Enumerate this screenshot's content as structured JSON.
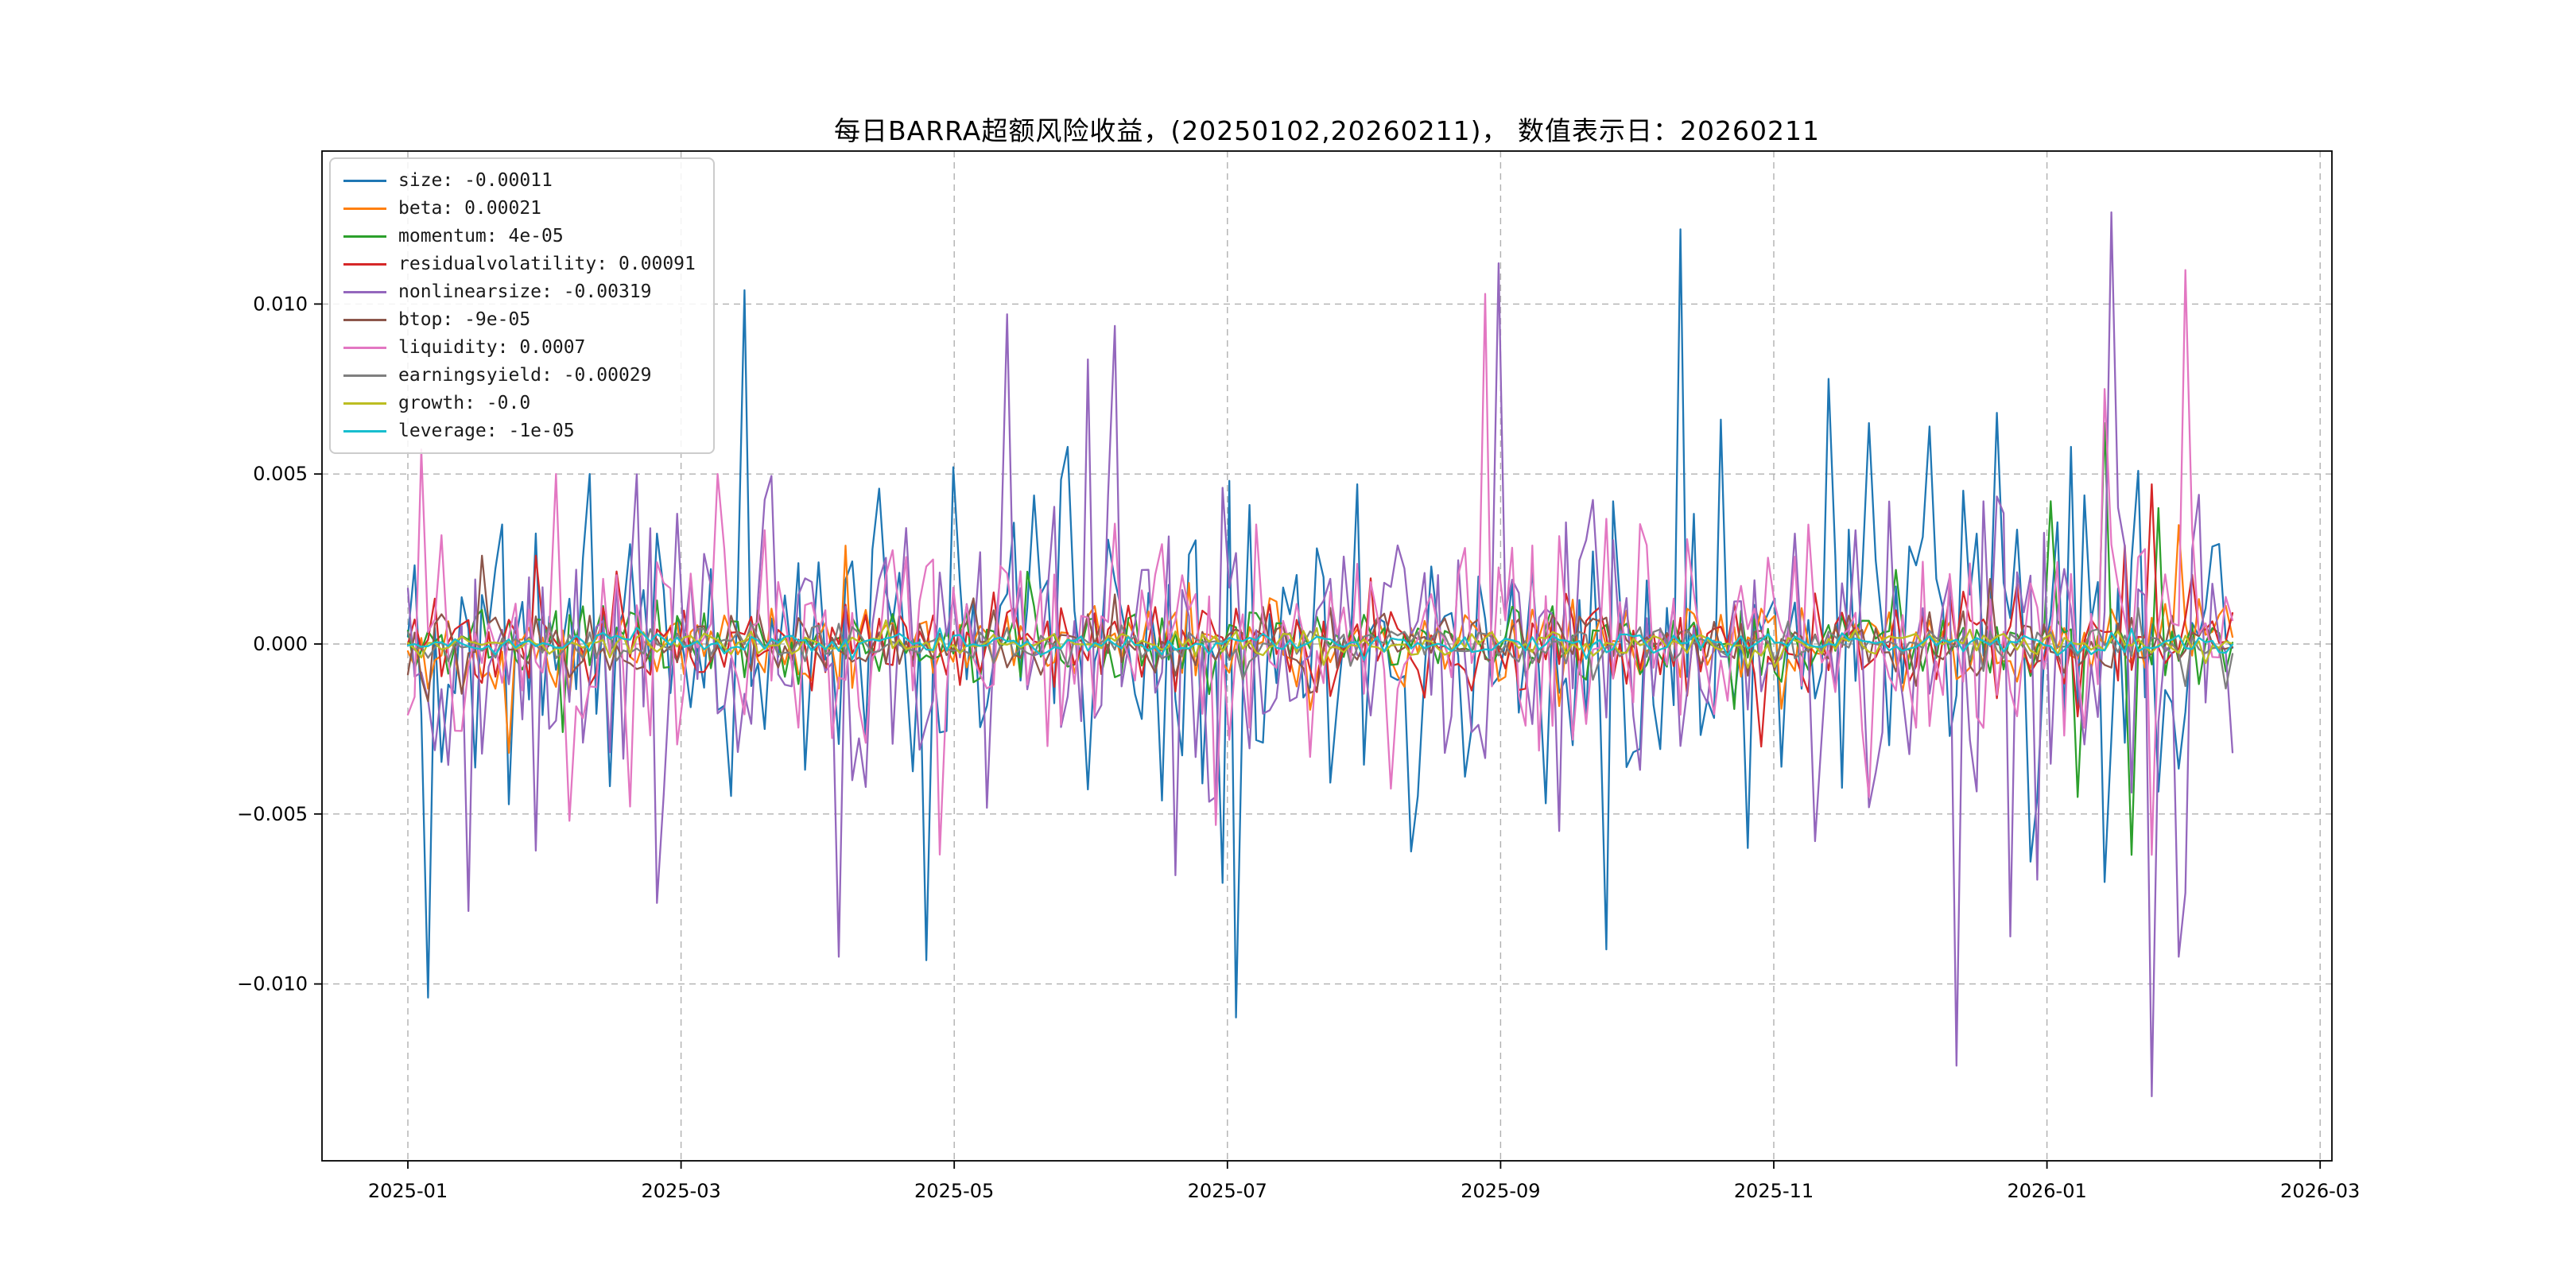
{
  "chart_data": {
    "type": "line",
    "title": "每日BARRA超额风险收益，(20250102,20260211)， 数值表示日：20260211",
    "x_tick_labels": [
      "2025-01",
      "2025-03",
      "2025-05",
      "2025-07",
      "2025-09",
      "2025-11",
      "2026-01",
      "2026-03"
    ],
    "x_tick_month_index": [
      0,
      2,
      4,
      6,
      8,
      10,
      12,
      14
    ],
    "y_ticks": [
      0.01,
      0.005,
      0.0,
      -0.005,
      -0.01
    ],
    "y_tick_labels": [
      "0.010",
      "0.005",
      "0.000",
      "−0.005",
      "−0.010"
    ],
    "ylim": [
      -0.0152,
      0.0145
    ],
    "x_range_labels": [
      "20250102",
      "20260211"
    ],
    "value_date": "20260211",
    "n_points": 272,
    "grid": true,
    "grid_color": "#b0b0b0",
    "axis_color": "#000000",
    "background": "#ffffff",
    "legend_border_color": "#cccccc",
    "legend_position": "upper left",
    "series": [
      {
        "name": "size",
        "label": "size: -0.00011",
        "value": "-0.00011",
        "color": "#1f77b4",
        "amp": 0.0035,
        "seed": 11,
        "spikes": [
          [
            0.012,
            -0.0104
          ],
          [
            0.1,
            0.005
          ],
          [
            0.283,
            -0.0093
          ],
          [
            0.3,
            0.0052
          ],
          [
            0.36,
            0.0058
          ],
          [
            0.45,
            0.0048
          ],
          [
            0.52,
            0.0047
          ],
          [
            0.698,
            0.0122
          ],
          [
            0.72,
            0.0066
          ],
          [
            0.735,
            -0.006
          ],
          [
            0.78,
            0.0078
          ],
          [
            0.8,
            0.0065
          ],
          [
            0.835,
            0.0064
          ],
          [
            0.87,
            0.0068
          ],
          [
            0.89,
            -0.0064
          ],
          [
            0.91,
            0.0058
          ],
          [
            0.93,
            -0.007
          ]
        ]
      },
      {
        "name": "beta",
        "label": "beta: 0.00021",
        "value": "0.00021",
        "color": "#ff7f0e",
        "amp": 0.001,
        "seed": 22,
        "spikes": [
          [
            0.055,
            -0.0032
          ],
          [
            0.97,
            0.0035
          ]
        ]
      },
      {
        "name": "momentum",
        "label": "momentum: 4e-05",
        "value": "4e-05",
        "color": "#2ca02c",
        "amp": 0.0009,
        "seed": 33,
        "spikes": [
          [
            0.9,
            0.0042
          ],
          [
            0.915,
            -0.0045
          ],
          [
            0.93,
            0.0065
          ],
          [
            0.945,
            -0.0062
          ],
          [
            0.96,
            0.004
          ]
        ]
      },
      {
        "name": "residualvolatility",
        "label": "residualvolatility: 0.00091",
        "value": "0.00091",
        "color": "#d62728",
        "amp": 0.0011,
        "seed": 44,
        "spikes": [
          [
            0.07,
            0.0026
          ],
          [
            0.955,
            0.0047
          ]
        ]
      },
      {
        "name": "nonlinearsize",
        "label": "nonlinearsize: -0.00319",
        "value": "-0.00319",
        "color": "#9467bd",
        "amp": 0.0034,
        "seed": 55,
        "spikes": [
          [
            0.236,
            -0.0092
          ],
          [
            0.33,
            0.0097
          ],
          [
            0.42,
            -0.0068
          ],
          [
            0.596,
            0.0112
          ],
          [
            0.63,
            -0.0055
          ],
          [
            0.77,
            -0.0058
          ],
          [
            0.85,
            -0.0124
          ],
          [
            0.88,
            -0.0086
          ],
          [
            0.932,
            0.0127
          ],
          [
            0.955,
            -0.0133
          ],
          [
            0.97,
            -0.0092
          ]
        ]
      },
      {
        "name": "btop",
        "label": "btop: -9e-05",
        "value": "-9e-05",
        "color": "#8c564b",
        "amp": 0.0007,
        "seed": 66,
        "spikes": [
          [
            0.04,
            0.0026
          ]
        ]
      },
      {
        "name": "liquidity",
        "label": "liquidity: 0.0007",
        "value": "0.0007",
        "color": "#e377c2",
        "amp": 0.0026,
        "seed": 77,
        "spikes": [
          [
            0.02,
            0.0032
          ],
          [
            0.08,
            0.005
          ],
          [
            0.09,
            -0.0052
          ],
          [
            0.17,
            0.005
          ],
          [
            0.592,
            0.0103
          ],
          [
            0.8,
            -0.0045
          ],
          [
            0.93,
            0.0075
          ],
          [
            0.955,
            -0.0062
          ],
          [
            0.975,
            0.011
          ]
        ]
      },
      {
        "name": "earningsyield",
        "label": "earningsyield: -0.00029",
        "value": "-0.00029",
        "color": "#7f7f7f",
        "amp": 0.00045,
        "seed": 88,
        "spikes": []
      },
      {
        "name": "growth",
        "label": "growth: -0.0",
        "value": "-0.0",
        "color": "#bcbd22",
        "amp": 0.0003,
        "seed": 99,
        "spikes": []
      },
      {
        "name": "leverage",
        "label": "leverage: -1e-05",
        "value": "-1e-05",
        "color": "#17becf",
        "amp": 0.00025,
        "seed": 110,
        "spikes": []
      }
    ]
  }
}
